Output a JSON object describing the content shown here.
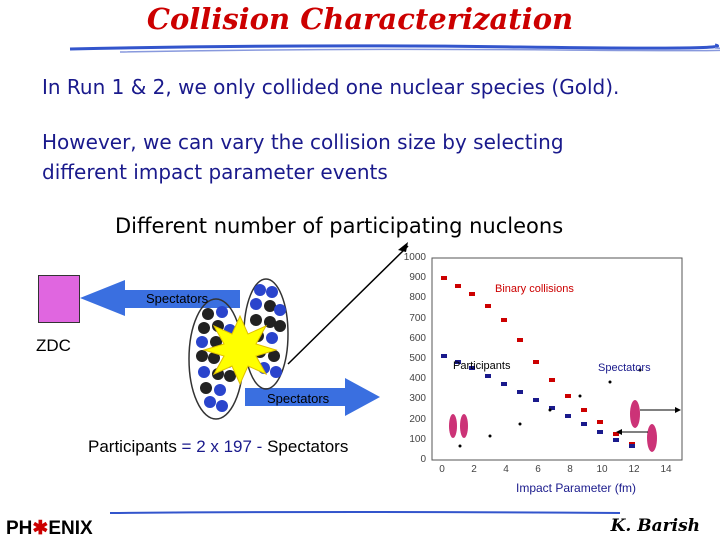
{
  "slide": {
    "title": "Collision Characterization",
    "line1": "In Run 1 & 2, we only collided one nuclear species (Gold).",
    "line2a": "However, we can vary the collision size by selecting",
    "line2b": "different impact parameter events",
    "line3": "Different number of participating nucleons",
    "formula_a": "Participants ",
    "formula_b": "= 2 x 197 - ",
    "formula_c": "Spectators",
    "author": "K. Barish",
    "logo_left": "PH",
    "logo_right": "ENIX"
  },
  "diagram": {
    "zdc_label": "ZDC",
    "spectators_left": "Spectators",
    "spectators_bottom": "Spectators",
    "zdc_color": "#e066e0",
    "arrow_color": "#3a6fe0"
  },
  "plot": {
    "y_ticks": [
      "1000",
      "900",
      "800",
      "700",
      "600",
      "500",
      "400",
      "300",
      "200",
      "100",
      "0"
    ],
    "x_ticks": [
      "0",
      "2",
      "4",
      "6",
      "8",
      "10",
      "12",
      "14"
    ],
    "xlabel": "Impact Parameter (fm)",
    "label_binary": "Binary collisions",
    "label_participants": "Participants",
    "label_spectators": "Spectators",
    "binary_color": "#cc0000",
    "participants_color": "#1a1a8c"
  }
}
